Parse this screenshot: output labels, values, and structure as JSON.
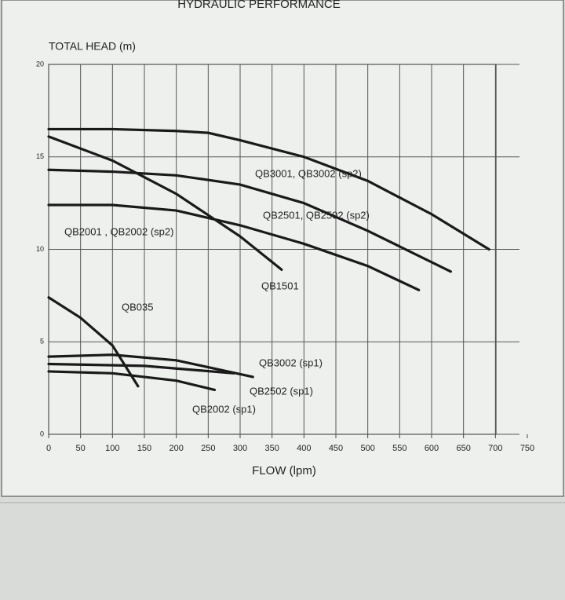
{
  "chart_data": {
    "type": "line",
    "title": "HYDRAULIC PERFORMANCE",
    "y_label": "TOTAL HEAD (m)",
    "x_label": "FLOW (lpm)",
    "xlim": [
      0,
      750
    ],
    "xticks": [
      0,
      50,
      100,
      150,
      200,
      250,
      300,
      350,
      400,
      450,
      500,
      550,
      600,
      650,
      700,
      750
    ],
    "ylim": [
      0,
      20
    ],
    "yticks": [
      0,
      5,
      10,
      15,
      20
    ],
    "grid": true,
    "series": [
      {
        "name": "QB3001, QB3002 (sp2)",
        "color": "#1a1a1a",
        "x": [
          0,
          100,
          200,
          250,
          300,
          400,
          500,
          600,
          690
        ],
        "values": [
          16.5,
          16.5,
          16.4,
          16.3,
          15.9,
          15.0,
          13.7,
          11.9,
          10.0
        ]
      },
      {
        "name": "QB2501, QB2502 (sp2)",
        "color": "#1a1a1a",
        "x": [
          0,
          100,
          200,
          300,
          400,
          500,
          630
        ],
        "values": [
          14.3,
          14.2,
          14.0,
          13.5,
          12.5,
          11.0,
          8.8
        ]
      },
      {
        "name": "QB2001 , QB2002 (sp2)",
        "color": "#1a1a1a",
        "x": [
          0,
          100,
          200,
          300,
          400,
          500,
          580
        ],
        "values": [
          12.4,
          12.4,
          12.1,
          11.3,
          10.3,
          9.1,
          7.8
        ]
      },
      {
        "name": "QB1501",
        "color": "#1a1a1a",
        "x": [
          0,
          100,
          200,
          300,
          365
        ],
        "values": [
          16.1,
          14.8,
          13.0,
          10.7,
          8.9
        ]
      },
      {
        "name": "QB035",
        "color": "#1a1a1a",
        "x": [
          0,
          50,
          100,
          140
        ],
        "values": [
          7.4,
          6.3,
          4.8,
          2.6
        ]
      },
      {
        "name": "QB3002 (sp1)",
        "color": "#1a1a1a",
        "x": [
          0,
          100,
          200,
          320
        ],
        "values": [
          4.2,
          4.3,
          4.0,
          3.1
        ]
      },
      {
        "name": "QB2502 (sp1)",
        "color": "#1a1a1a",
        "x": [
          0,
          150,
          290
        ],
        "values": [
          3.8,
          3.7,
          3.3
        ]
      },
      {
        "name": "QB2002 (sp1)",
        "color": "#1a1a1a",
        "x": [
          0,
          100,
          200,
          260
        ],
        "values": [
          3.4,
          3.3,
          2.9,
          2.4
        ]
      }
    ]
  }
}
